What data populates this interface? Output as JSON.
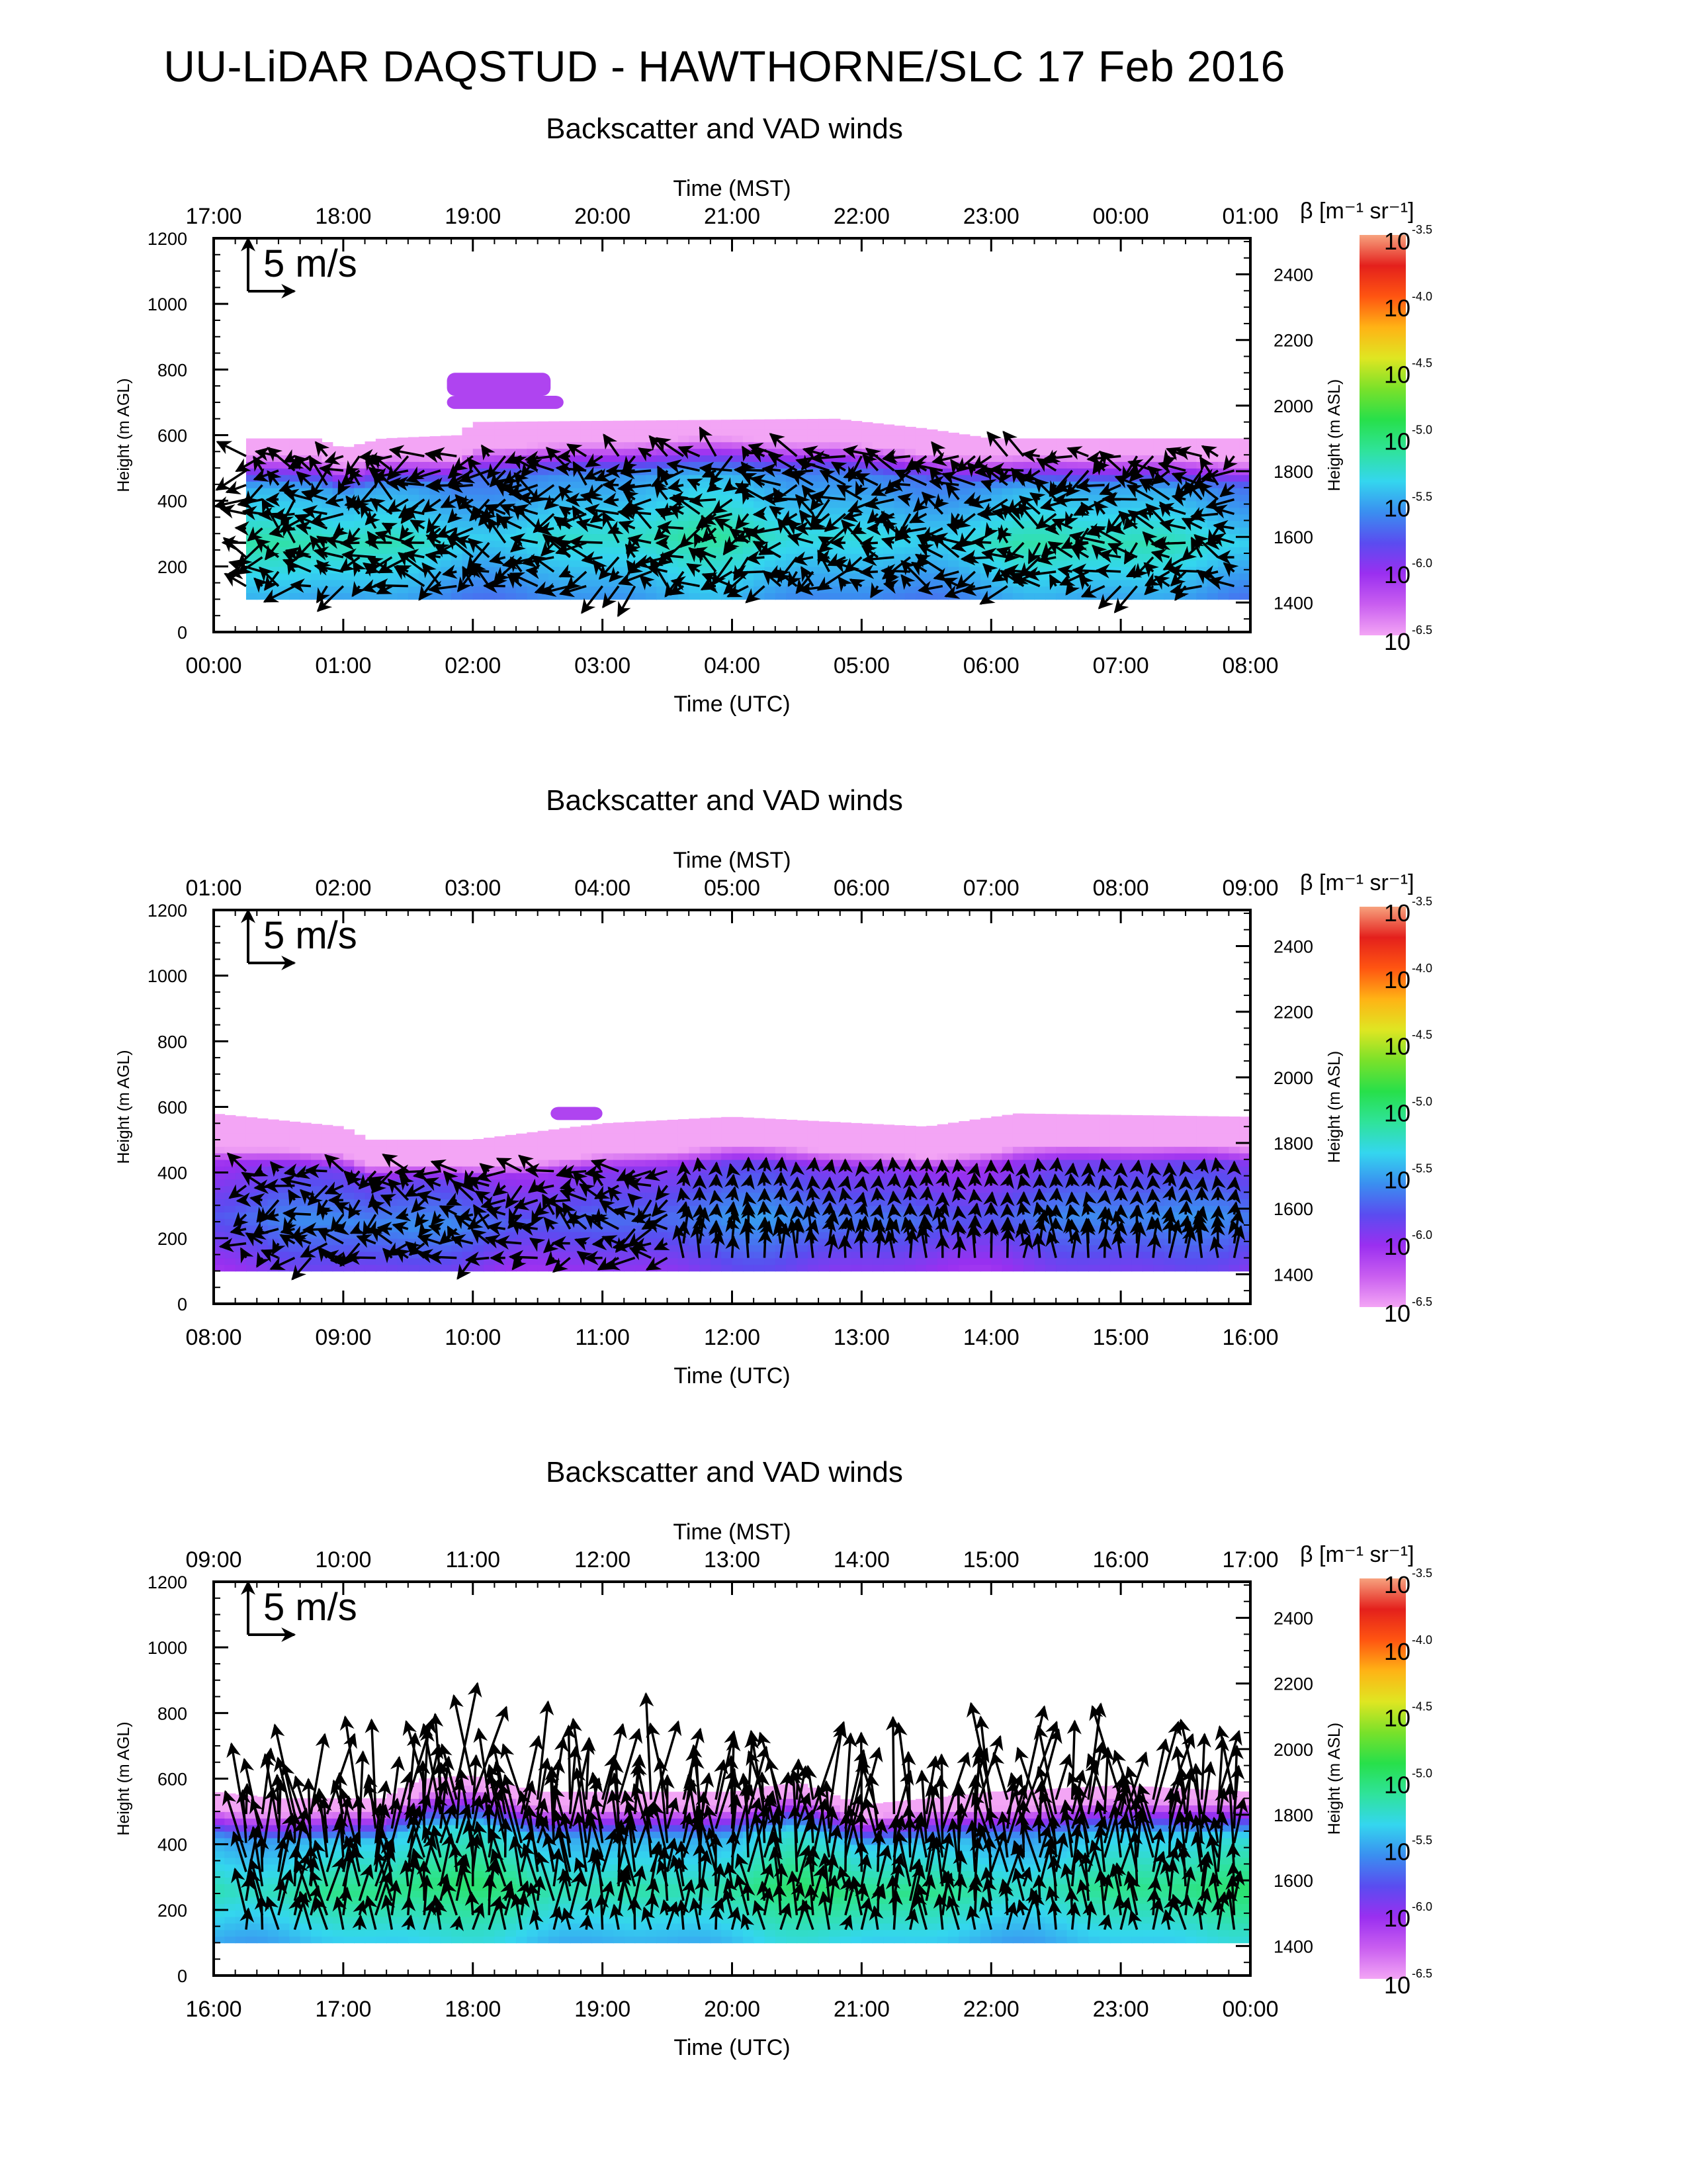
{
  "title": "UU-LiDAR DAQSTUD - HAWTHORNE/SLC 17 Feb 2016",
  "colors": {
    "scale": [
      "#f3a5f5",
      "#c95ef0",
      "#9a2ff0",
      "#5a4cf0",
      "#3a8ff0",
      "#34d6ef",
      "#2fe39a",
      "#27e04a",
      "#7ae12a",
      "#dfe622",
      "#ffb315",
      "#ff5511",
      "#e4201c",
      "#f7a27e"
    ],
    "arrow": "#000000",
    "axis": "#000000"
  },
  "common": {
    "top_axis_label": "Time (MST)",
    "bottom_axis_label": "Time (UTC)",
    "left_axis_label": "Height (m AGL)",
    "right_axis_label": "Height (m ASL)",
    "arrow_key_label": "5 m/s",
    "colorbar_label": "β [m⁻¹ sr⁻¹]",
    "colorbar_ticks": [
      {
        "base": "10",
        "exp": "-3.5"
      },
      {
        "base": "10",
        "exp": "-4.0"
      },
      {
        "base": "10",
        "exp": "-4.5"
      },
      {
        "base": "10",
        "exp": "-5.0"
      },
      {
        "base": "10",
        "exp": "-5.5"
      },
      {
        "base": "10",
        "exp": "-6.0"
      },
      {
        "base": "10",
        "exp": "-6.5"
      }
    ],
    "left_ticks": [
      "0",
      "200",
      "400",
      "600",
      "800",
      "1000",
      "1200"
    ],
    "right_ticks": [
      "1400",
      "1600",
      "1800",
      "2000",
      "2200",
      "2400"
    ]
  },
  "chart_data": [
    {
      "type": "heatmap",
      "title": "Backscatter and VAD winds",
      "x_utc_ticks": [
        "00:00",
        "01:00",
        "02:00",
        "03:00",
        "04:00",
        "05:00",
        "06:00",
        "07:00",
        "08:00"
      ],
      "x_mst_ticks": [
        "17:00",
        "18:00",
        "19:00",
        "20:00",
        "21:00",
        "22:00",
        "23:00",
        "00:00",
        "01:00"
      ],
      "x_range_hours_utc": [
        0,
        8
      ],
      "ylim_agl": [
        0,
        1200
      ],
      "ylim_asl": [
        1310,
        2510
      ],
      "colorbar_range_log10": [
        -6.5,
        -3.5
      ],
      "data_bottom_agl": 100,
      "top_profile": [
        [
          0.25,
          590
        ],
        [
          0.8,
          590
        ],
        [
          1.0,
          560
        ],
        [
          1.3,
          590
        ],
        [
          1.9,
          600
        ],
        [
          2.0,
          640
        ],
        [
          4.8,
          650
        ],
        [
          5.5,
          620
        ],
        [
          6.0,
          590
        ],
        [
          8.0,
          590
        ]
      ],
      "layers": [
        [
          1.8,
          2.6,
          720,
          790
        ],
        [
          1.8,
          2.7,
          680,
          720
        ]
      ],
      "core_log10": -5.1,
      "wind_speed_mps": 3.5,
      "wind_top_agl": 600
    },
    {
      "type": "heatmap",
      "title": "Backscatter and VAD winds",
      "x_utc_ticks": [
        "08:00",
        "09:00",
        "10:00",
        "11:00",
        "12:00",
        "13:00",
        "14:00",
        "15:00",
        "16:00"
      ],
      "x_mst_ticks": [
        "01:00",
        "02:00",
        "03:00",
        "04:00",
        "05:00",
        "06:00",
        "07:00",
        "08:00",
        "09:00"
      ],
      "x_range_hours_utc": [
        8,
        16
      ],
      "ylim_agl": [
        0,
        1200
      ],
      "ylim_asl": [
        1310,
        2510
      ],
      "colorbar_range_log10": [
        -6.5,
        -3.5
      ],
      "data_bottom_agl": 100,
      "top_profile": [
        [
          8.0,
          580
        ],
        [
          9.0,
          540
        ],
        [
          9.2,
          500
        ],
        [
          10.0,
          500
        ],
        [
          11.0,
          550
        ],
        [
          12.0,
          570
        ],
        [
          13.5,
          540
        ],
        [
          14.2,
          580
        ],
        [
          16.0,
          570
        ]
      ],
      "layers": [
        [
          10.6,
          11.0,
          560,
          600
        ]
      ],
      "core_log10": -5.5,
      "wind_speed_mps": 3.0,
      "wind_top_agl": 450
    },
    {
      "type": "heatmap",
      "title": "Backscatter and VAD winds",
      "x_utc_ticks": [
        "16:00",
        "17:00",
        "18:00",
        "19:00",
        "20:00",
        "21:00",
        "22:00",
        "23:00",
        "00:00"
      ],
      "x_mst_ticks": [
        "09:00",
        "10:00",
        "11:00",
        "12:00",
        "13:00",
        "14:00",
        "15:00",
        "16:00",
        "17:00"
      ],
      "x_range_hours_utc": [
        16,
        24
      ],
      "ylim_agl": [
        0,
        1200
      ],
      "ylim_asl": [
        1310,
        2510
      ],
      "colorbar_range_log10": [
        -6.5,
        -3.5
      ],
      "data_bottom_agl": 100,
      "top_profile": [
        [
          16.0,
          560
        ],
        [
          16.5,
          540
        ],
        [
          17.3,
          540
        ],
        [
          17.6,
          600
        ],
        [
          18.0,
          610
        ],
        [
          18.5,
          560
        ],
        [
          20.0,
          560
        ],
        [
          20.5,
          590
        ],
        [
          21.0,
          520
        ],
        [
          22.0,
          560
        ],
        [
          23.0,
          580
        ],
        [
          24.0,
          560
        ]
      ],
      "layers": [],
      "core_log10": -4.95,
      "wind_speed_mps": 8.0,
      "wind_top_agl": 800
    }
  ]
}
